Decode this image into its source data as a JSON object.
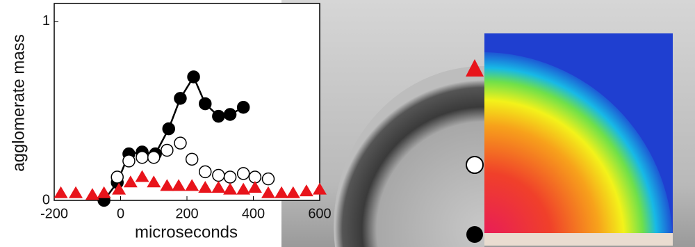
{
  "chart_data": {
    "type": "scatter",
    "xlabel": "microseconds",
    "ylabel": "agglomerate mass",
    "xlim": [
      -200,
      600
    ],
    "ylim": [
      0,
      1.1
    ],
    "xticks": [
      -200,
      0,
      200,
      400,
      600
    ],
    "yticks": [
      0,
      1
    ],
    "series": [
      {
        "color": "#000000",
        "marker": "circle",
        "filled": true,
        "connected": true,
        "x": [
          -50,
          -10,
          25,
          65,
          105,
          145,
          180,
          220,
          255,
          295,
          330,
          370
        ],
        "values": [
          0,
          0.1,
          0.26,
          0.27,
          0.26,
          0.4,
          0.57,
          0.69,
          0.54,
          0.47,
          0.48,
          0.52
        ]
      },
      {
        "color": "#000000",
        "marker": "circle",
        "filled": false,
        "connected": false,
        "x": [
          -10,
          25,
          65,
          100,
          140,
          180,
          215,
          255,
          295,
          330,
          370,
          405,
          445
        ],
        "values": [
          0.13,
          0.22,
          0.24,
          0.24,
          0.28,
          0.32,
          0.23,
          0.16,
          0.14,
          0.13,
          0.15,
          0.13,
          0.12
        ]
      },
      {
        "color": "#e8141b",
        "marker": "triangle",
        "filled": true,
        "connected": false,
        "x": [
          -180,
          -135,
          -85,
          -50,
          -5,
          30,
          65,
          100,
          140,
          175,
          215,
          255,
          295,
          330,
          370,
          405,
          445,
          485,
          520,
          560,
          600
        ],
        "values": [
          0.04,
          0.04,
          0.03,
          0.04,
          0.06,
          0.1,
          0.13,
          0.1,
          0.08,
          0.08,
          0.08,
          0.07,
          0.07,
          0.06,
          0.06,
          0.07,
          0.04,
          0.04,
          0.04,
          0.05,
          0.06
        ]
      }
    ]
  }
}
